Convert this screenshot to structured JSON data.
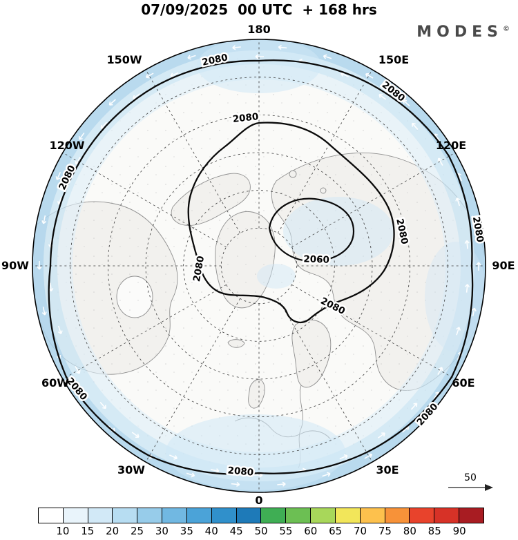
{
  "header": {
    "title": "07/09/2025  00 UTC  + 168 hrs",
    "logo": {
      "text": "MODES",
      "mark": "©"
    }
  },
  "map": {
    "lon_labels": [
      "180",
      "150W",
      "150E",
      "120W",
      "120E",
      "90W",
      "90E",
      "60W",
      "60E",
      "30W",
      "30E",
      "0"
    ],
    "contour_labels": {
      "h2080": "2080",
      "h2060": "2060"
    },
    "ref_arrow": {
      "label": "50"
    },
    "graticule": {
      "lon_step_deg": 30
    }
  },
  "colorbar": {
    "ticks": [
      "10",
      "15",
      "20",
      "25",
      "30",
      "35",
      "40",
      "45",
      "50",
      "55",
      "60",
      "65",
      "70",
      "75",
      "80",
      "85",
      "90"
    ],
    "segments": [
      "#ffffff",
      "#e9f4fb",
      "#d2e9f7",
      "#b7ddf2",
      "#97ccea",
      "#71b8e2",
      "#4ba3d8",
      "#3090cb",
      "#1e7ab8",
      "#3fae54",
      "#6cbf53",
      "#a8d75a",
      "#f2e65a",
      "#fdc14d",
      "#f79239",
      "#e8432c",
      "#d73227",
      "#a81c22"
    ]
  },
  "palette": {
    "ring_outer": "#add4ec",
    "ring_mid": "#c4e2f3",
    "ring_inner": "#ddeef9",
    "interior": "#fafaf8",
    "land": "#f2f1ee",
    "coast": "#8f8f8f",
    "sea_patch": "#cfe7f6",
    "contour": "#0a0a0a"
  }
}
